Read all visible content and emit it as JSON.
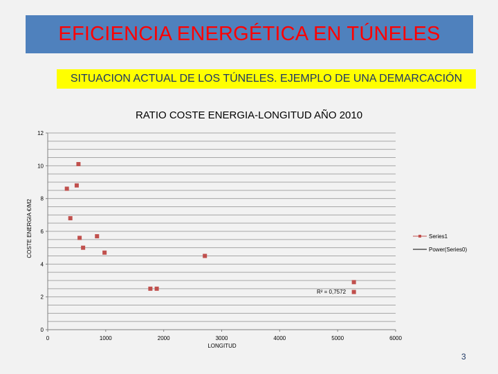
{
  "slide": {
    "title": "EFICIENCIA ENERGÉTICA EN TÚNELES",
    "subtitle": "SITUACION ACTUAL DE LOS TÚNELES. EJEMPLO DE UNA DEMARCACIÓN",
    "page_number": "3"
  },
  "colors": {
    "banner": "#4f81bd",
    "title_text": "#ff0000",
    "subtitle_bg": "#ffff00",
    "marker": "#c0504d"
  },
  "chart_data": {
    "type": "scatter",
    "title": "RATIO COSTE ENERGIA-LONGITUD AÑO 2010",
    "xlabel": "LONGITUD",
    "ylabel": "COSTE ENERGIA €/M2",
    "xlim": [
      0,
      6000
    ],
    "ylim": [
      0,
      12
    ],
    "xticks": [
      0,
      1000,
      2000,
      3000,
      4000,
      5000,
      6000
    ],
    "yticks": [
      0,
      2,
      4,
      6,
      8,
      10,
      12
    ],
    "grid": "horizontal",
    "legend": [
      "Series1",
      "Power(Series0)"
    ],
    "legend_position": "right",
    "annotation": "R² = 0,7572",
    "series": [
      {
        "name": "Series1",
        "points": [
          {
            "x": 530,
            "y": 10.1
          },
          {
            "x": 330,
            "y": 8.6
          },
          {
            "x": 500,
            "y": 8.8
          },
          {
            "x": 390,
            "y": 6.8
          },
          {
            "x": 550,
            "y": 5.6
          },
          {
            "x": 610,
            "y": 5.0
          },
          {
            "x": 850,
            "y": 5.7
          },
          {
            "x": 980,
            "y": 4.7
          },
          {
            "x": 2710,
            "y": 4.5
          },
          {
            "x": 1770,
            "y": 2.5
          },
          {
            "x": 1880,
            "y": 2.5
          },
          {
            "x": 5280,
            "y": 2.9
          },
          {
            "x": 5280,
            "y": 2.3
          }
        ]
      }
    ]
  }
}
